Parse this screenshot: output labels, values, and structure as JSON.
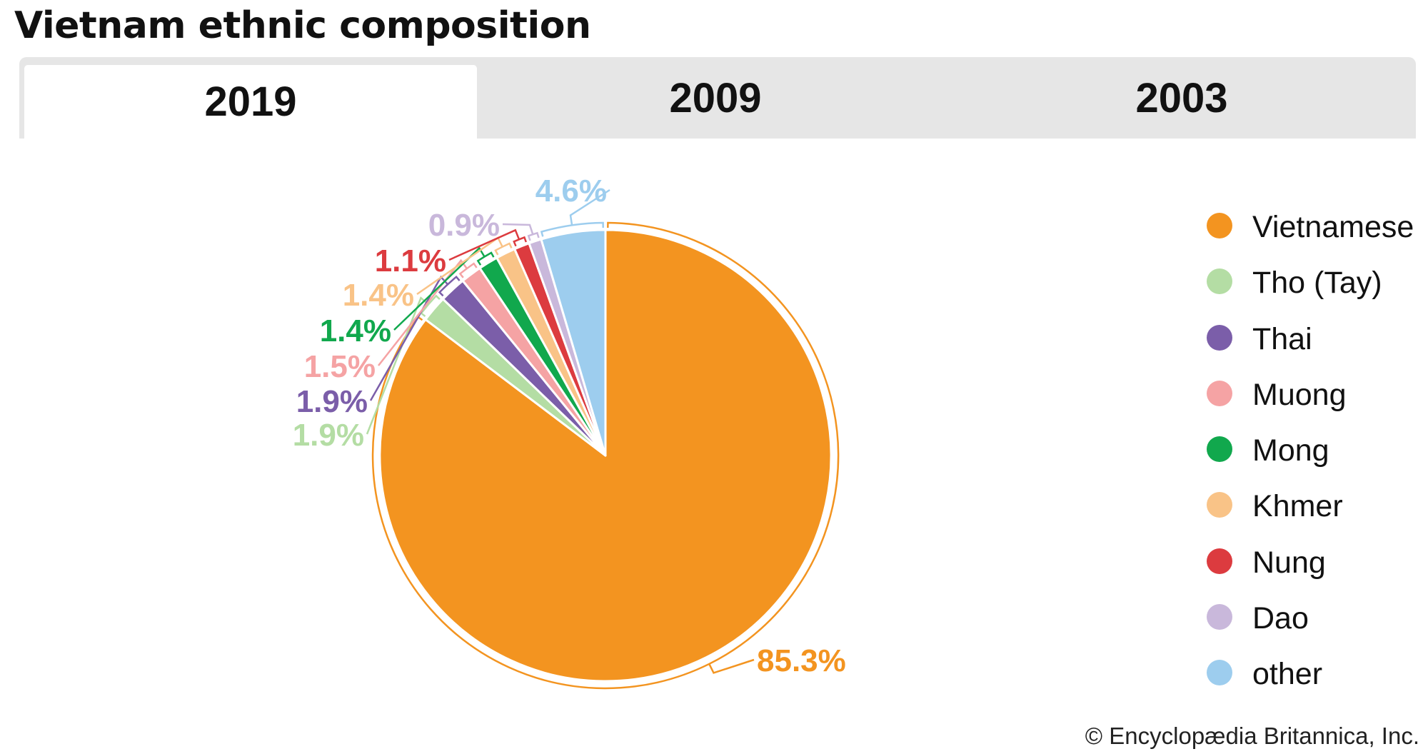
{
  "title": "Vietnam ethnic composition",
  "tabs": [
    {
      "label": "2019",
      "active": true
    },
    {
      "label": "2009",
      "active": false
    },
    {
      "label": "2003",
      "active": false
    }
  ],
  "chart_data": {
    "type": "pie",
    "title": "",
    "year": "2019",
    "start_angle_deg": 0,
    "direction": "clockwise",
    "legend_position": "right",
    "slices": [
      {
        "name": "Vietnamese",
        "value": 85.3,
        "label": "85.3%",
        "color": "#f39420"
      },
      {
        "name": "Tho (Tay)",
        "value": 1.9,
        "label": "1.9%",
        "color": "#b4dda4"
      },
      {
        "name": "Thai",
        "value": 1.9,
        "label": "1.9%",
        "color": "#7b5ea9"
      },
      {
        "name": "Muong",
        "value": 1.5,
        "label": "1.5%",
        "color": "#f5a3a4"
      },
      {
        "name": "Mong",
        "value": 1.4,
        "label": "1.4%",
        "color": "#11a84d"
      },
      {
        "name": "Khmer",
        "value": 1.4,
        "label": "1.4%",
        "color": "#f9c387"
      },
      {
        "name": "Nung",
        "value": 1.1,
        "label": "1.1%",
        "color": "#dc3b3f"
      },
      {
        "name": "Dao",
        "value": 0.9,
        "label": "0.9%",
        "color": "#c9b8db"
      },
      {
        "name": "other",
        "value": 4.6,
        "label": "4.6%",
        "color": "#9dcdee"
      }
    ]
  },
  "copyright": "© Encyclopædia Britannica, Inc."
}
